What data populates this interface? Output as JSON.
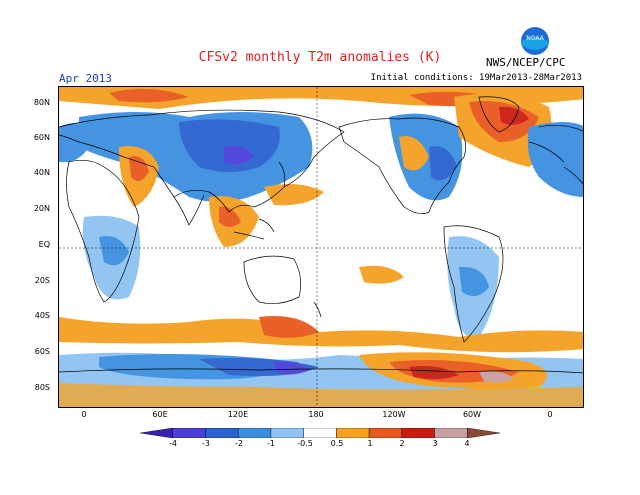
{
  "title": "CFSv2 monthly T2m anomalies (K)",
  "period": "Apr 2013",
  "initial_conditions": "Initial conditions: 19Mar2013-28Mar2013",
  "agency": "NWS/NCEP/CPC",
  "logo_text": "NOAA",
  "lat_labels": [
    "80N",
    "60N",
    "40N",
    "20N",
    "EQ",
    "20S",
    "40S",
    "60S",
    "80S"
  ],
  "lon_labels": [
    "0",
    "60E",
    "120E",
    "180",
    "120W",
    "60W",
    "0"
  ],
  "colorbar": {
    "labels": [
      "-4",
      "-3",
      "-2",
      "-1",
      "-0.5",
      "0.5",
      "1",
      "2",
      "3",
      "4"
    ],
    "colors": [
      "#3a1fb0",
      "#4a3fd6",
      "#2a62d0",
      "#3b8fe0",
      "#8ec2f2",
      "#ffffff",
      "#f5a020",
      "#e9581e",
      "#c81c12",
      "#c6a0a0",
      "#8a4a3a"
    ]
  }
}
